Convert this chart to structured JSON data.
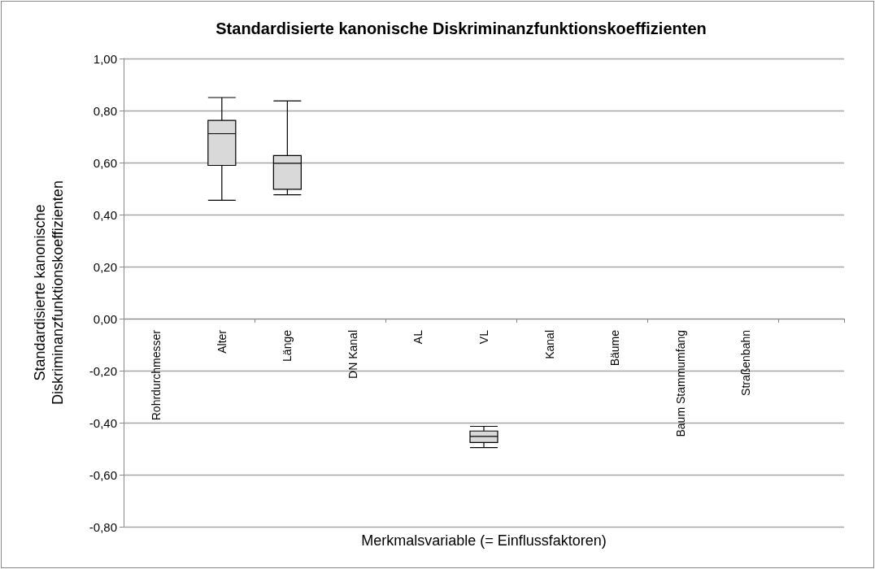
{
  "chart_data": {
    "type": "box",
    "title": "Standardisierte kanonische Diskriminanzfunktionskoeffizienten",
    "xlabel": "Merkmalsvariable (= Einflussfaktoren)",
    "ylabel": "Standardisierte kanonische\nDiskriminanzfunktionskoeffizienten",
    "categories": [
      "Rohrdurchmesser",
      "Alter",
      "Länge",
      "DN Kanal",
      "AL",
      "VL",
      "Kanal",
      "Bäume",
      "Baum Stammumfang",
      "Straßenbahn",
      null
    ],
    "boxes": [
      null,
      {
        "low": 0.455,
        "q1": 0.589,
        "median": 0.711,
        "q3": 0.762,
        "high": 0.85
      },
      {
        "low": 0.476,
        "q1": 0.497,
        "median": 0.597,
        "q3": 0.627,
        "high": 0.837
      },
      null,
      null,
      {
        "low": -0.496,
        "q1": -0.476,
        "median": -0.453,
        "q3": -0.432,
        "high": -0.414
      },
      null,
      null,
      null,
      null,
      null
    ],
    "color": "#d9d9d9",
    "ylim": [
      -0.8,
      1.0
    ],
    "yticks": [
      {
        "value": -0.8,
        "label": "-0,80"
      },
      {
        "value": -0.6,
        "label": "-0,60"
      },
      {
        "value": -0.4,
        "label": "-0,40"
      },
      {
        "value": -0.2,
        "label": "-0,20"
      },
      {
        "value": 0,
        "label": "0,00"
      },
      {
        "value": 0.2,
        "label": "0,20"
      },
      {
        "value": 0.4,
        "label": "0,40"
      },
      {
        "value": 0.6,
        "label": "0,60"
      },
      {
        "value": 0.8,
        "label": "0,80"
      },
      {
        "value": 1.0,
        "label": "1,00"
      }
    ],
    "grid": "y"
  }
}
